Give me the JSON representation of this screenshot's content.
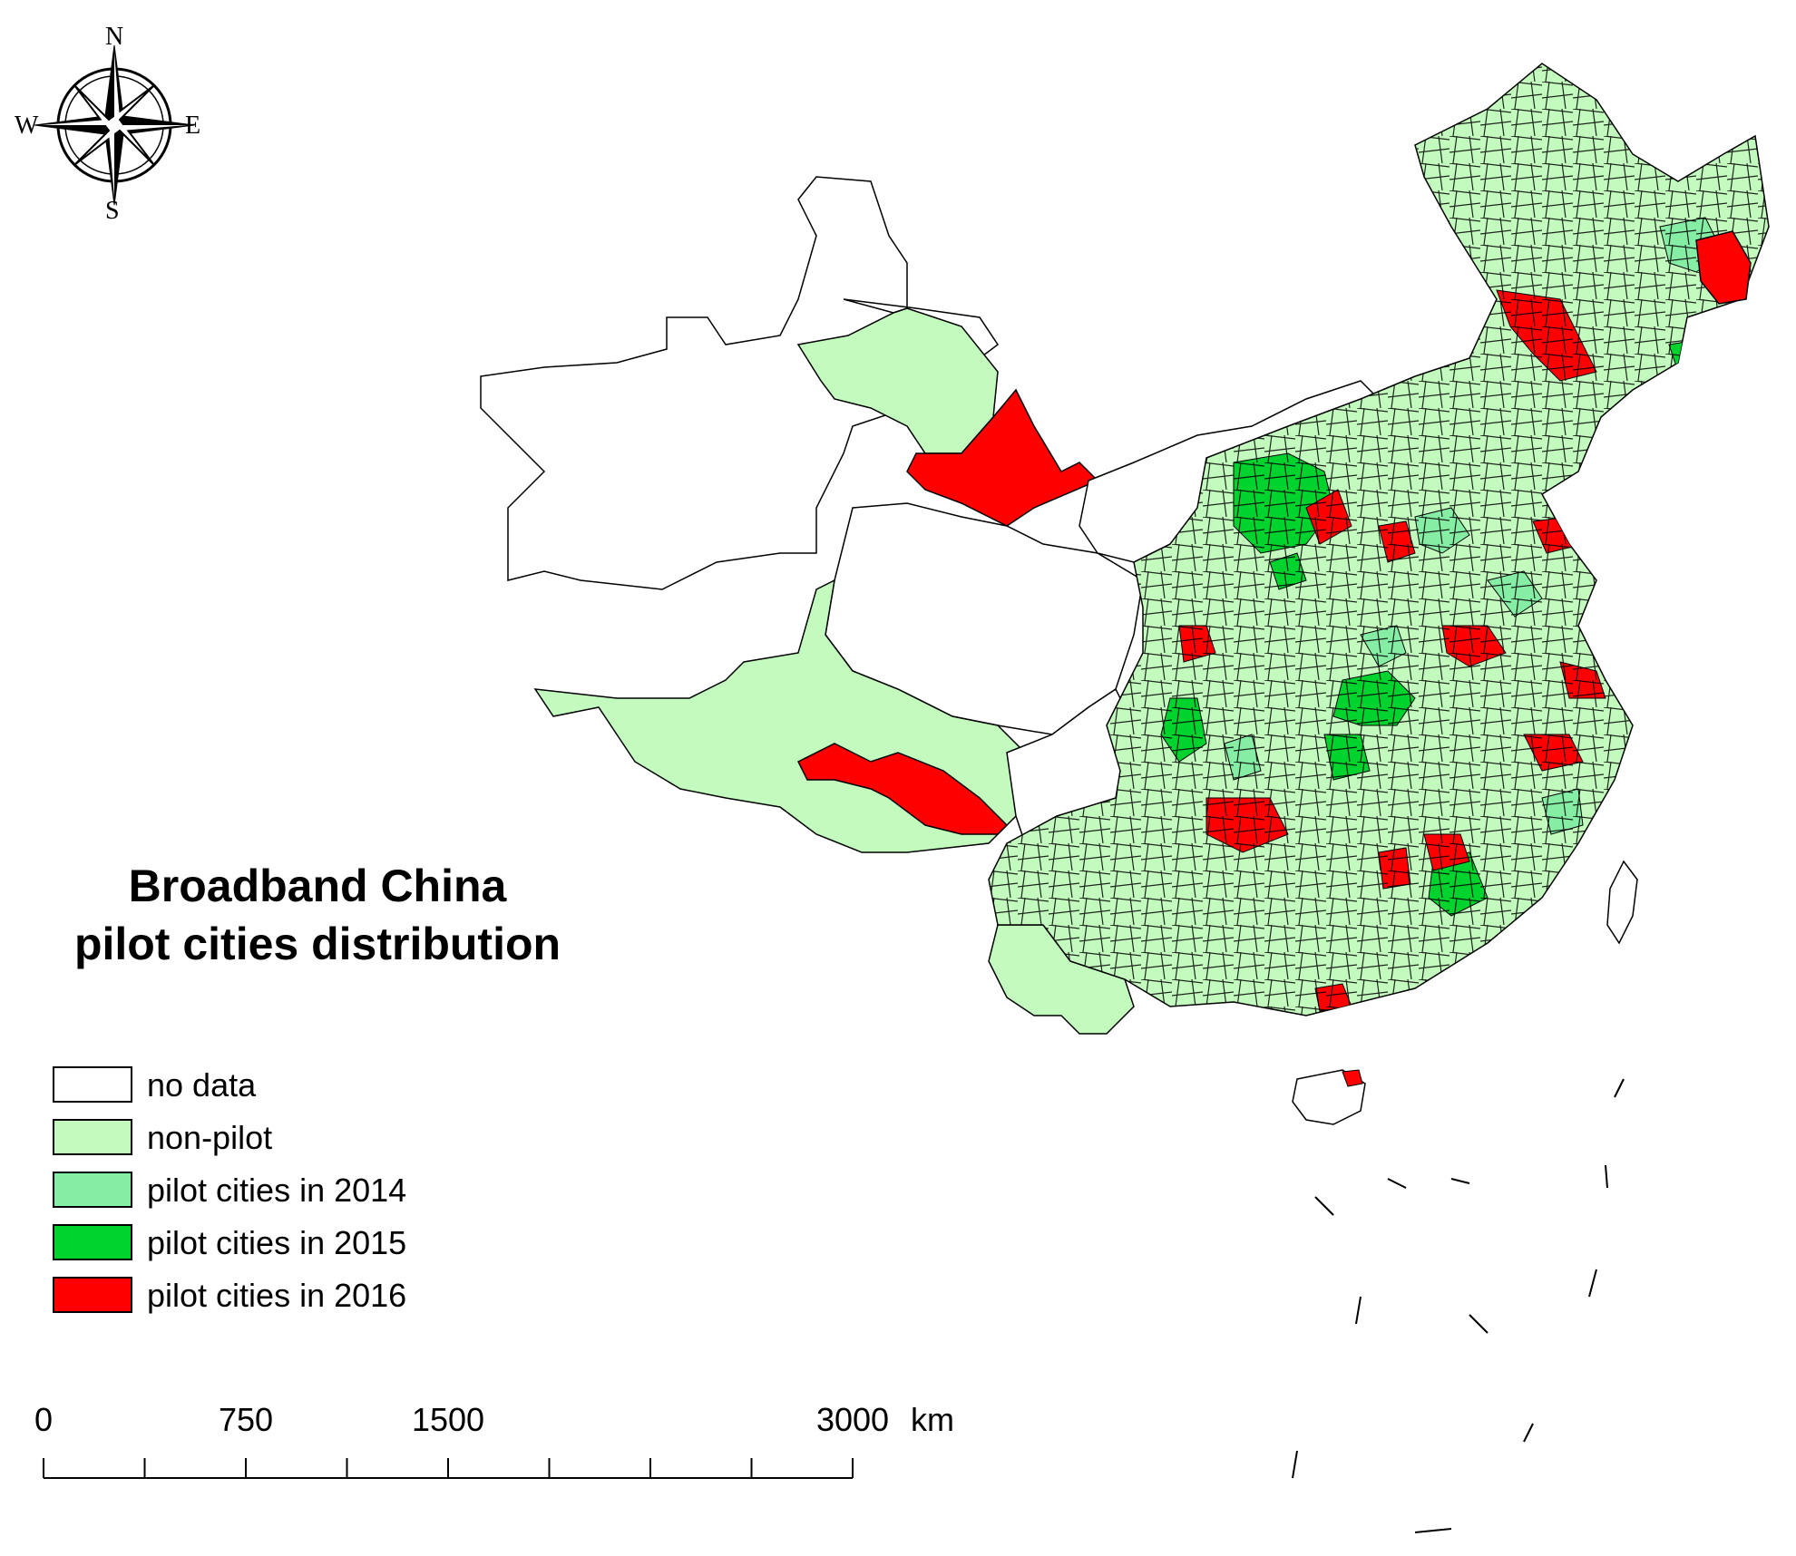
{
  "title": {
    "line1": "Broadband China",
    "line2": "pilot cities distribution"
  },
  "compass": {
    "north": "N",
    "south": "S",
    "east": "E",
    "west": "W"
  },
  "legend": [
    {
      "key": "no_data",
      "label": "no data",
      "color": "#ffffff"
    },
    {
      "key": "non_pilot",
      "label": "non-pilot",
      "color": "#c3fbbe"
    },
    {
      "key": "pilot2014",
      "label": "pilot cities in 2014",
      "color": "#86eea4"
    },
    {
      "key": "pilot2015",
      "label": "pilot cities in 2015",
      "color": "#00d22e"
    },
    {
      "key": "pilot2016",
      "label": "pilot cities in 2016",
      "color": "#ff0000"
    }
  ],
  "scale_bar": {
    "labels": [
      "0",
      "750",
      "1500",
      "3000"
    ],
    "label_values_km": [
      0,
      750,
      1500,
      3000
    ],
    "unit": "km",
    "max_km": 3000,
    "ticks_km": [
      0,
      375,
      750,
      1125,
      1500,
      1875,
      2250,
      2625,
      3000
    ]
  },
  "colors": {
    "outline": "#000000",
    "background": "#ffffff"
  }
}
